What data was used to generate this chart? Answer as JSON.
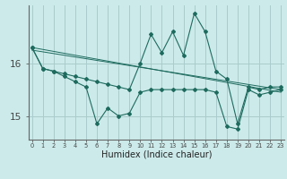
{
  "title": "",
  "xlabel": "Humidex (Indice chaleur)",
  "bg_color": "#cceaea",
  "grid_color": "#aacccc",
  "line_color": "#1e6b5e",
  "x": [
    0,
    1,
    2,
    3,
    4,
    5,
    6,
    7,
    8,
    9,
    10,
    11,
    12,
    13,
    14,
    15,
    16,
    17,
    18,
    19,
    20,
    21,
    22,
    23
  ],
  "series1": [
    16.3,
    15.9,
    15.85,
    15.8,
    15.75,
    15.7,
    15.65,
    15.6,
    15.55,
    15.5,
    16.0,
    16.55,
    16.2,
    16.6,
    16.15,
    16.95,
    16.6,
    15.85,
    15.7,
    14.85,
    15.55,
    15.5,
    15.55,
    15.55
  ],
  "series2": [
    16.3,
    15.9,
    15.85,
    15.75,
    15.65,
    15.55,
    14.85,
    15.15,
    15.0,
    15.05,
    15.45,
    15.5,
    15.5,
    15.5,
    15.5,
    15.5,
    15.5,
    15.45,
    14.8,
    14.75,
    15.5,
    15.4,
    15.45,
    15.5
  ],
  "trend1_x": [
    0,
    23
  ],
  "trend1_y": [
    16.3,
    15.45
  ],
  "trend2_x": [
    0,
    23
  ],
  "trend2_y": [
    16.25,
    15.5
  ],
  "yticks": [
    15,
    16
  ],
  "ylim": [
    14.55,
    17.1
  ],
  "xlim": [
    -0.3,
    23.3
  ]
}
